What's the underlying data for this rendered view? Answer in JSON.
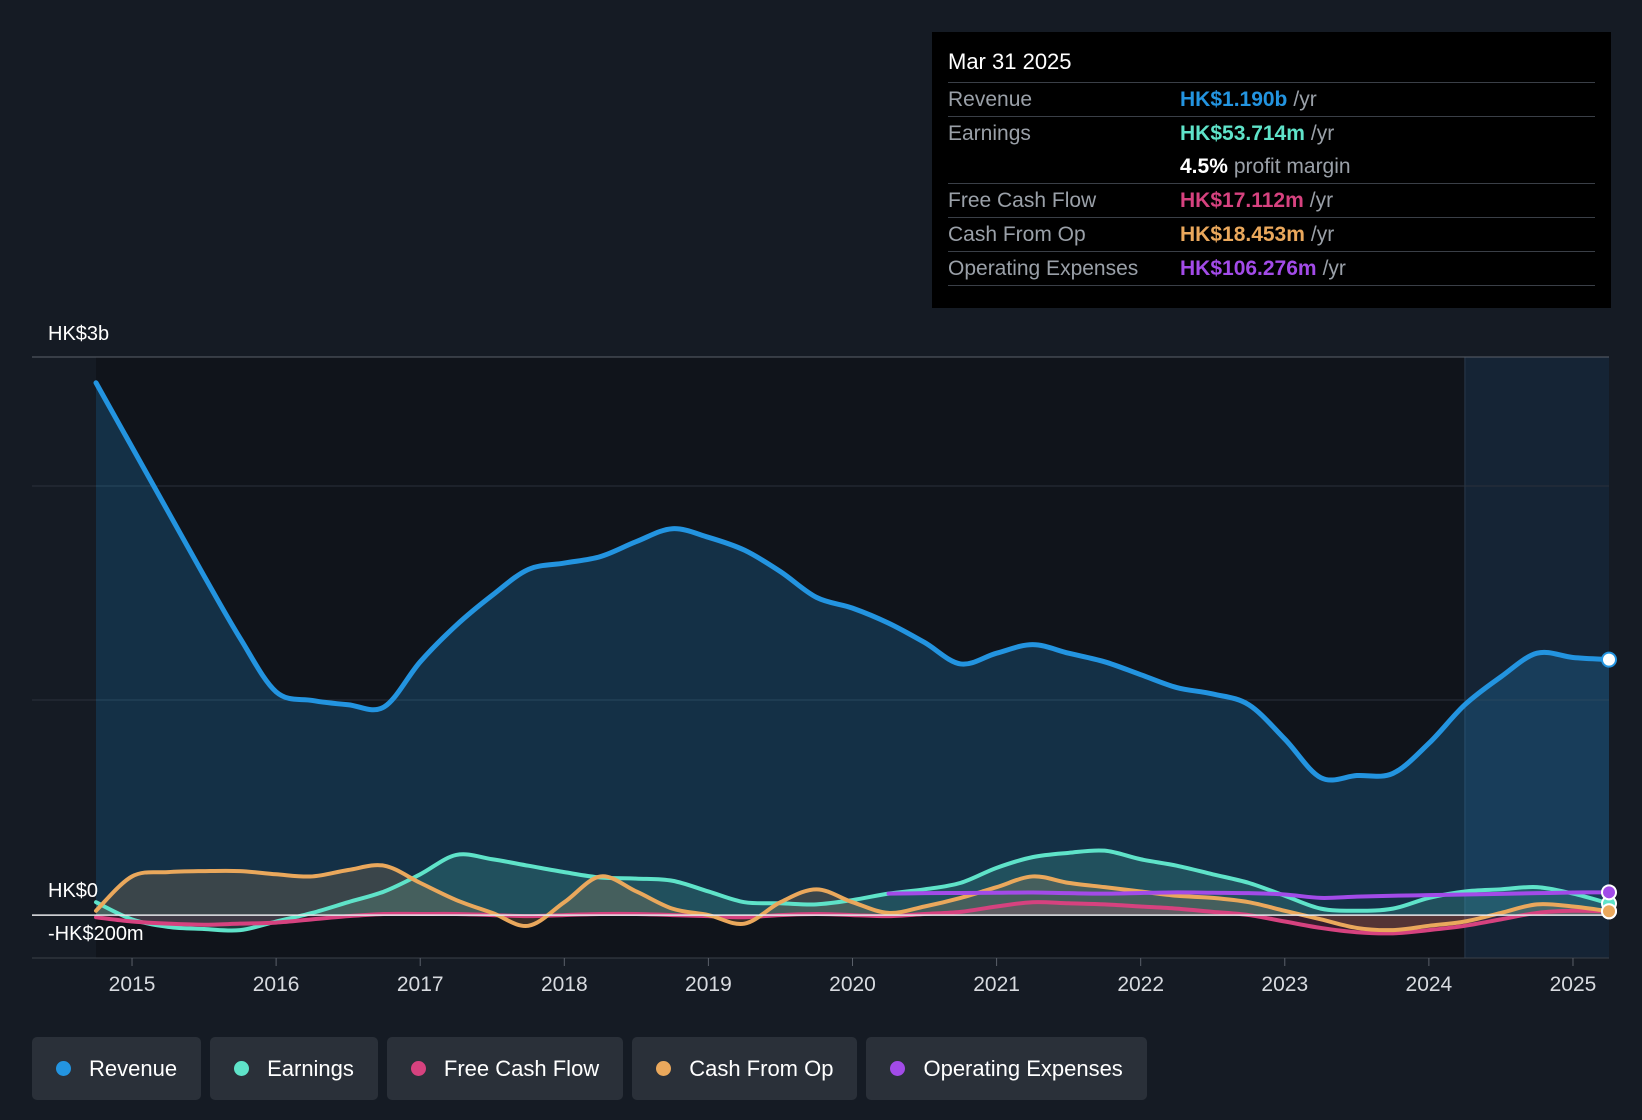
{
  "tooltip": {
    "date": "Mar 31 2025",
    "rows": [
      {
        "name": "Revenue",
        "value": "HK$1.190b",
        "unit": "/yr",
        "color": "#2394e0"
      },
      {
        "name": "Earnings",
        "value": "HK$53.714m",
        "unit": "/yr",
        "color": "#5fe3c9"
      },
      {
        "name": "",
        "value": "4.5%",
        "unit": "profit margin",
        "color": "#ffffff"
      },
      {
        "name": "Free Cash Flow",
        "value": "HK$17.112m",
        "unit": "/yr",
        "color": "#d6427f"
      },
      {
        "name": "Cash From Op",
        "value": "HK$18.453m",
        "unit": "/yr",
        "color": "#eaa85c"
      },
      {
        "name": "Operating Expenses",
        "value": "HK$106.276m",
        "unit": "/yr",
        "color": "#a24be8"
      }
    ]
  },
  "legend": [
    {
      "label": "Revenue",
      "color": "#2394e0"
    },
    {
      "label": "Earnings",
      "color": "#5fe3c9"
    },
    {
      "label": "Free Cash Flow",
      "color": "#d6427f"
    },
    {
      "label": "Cash From Op",
      "color": "#eaa85c"
    },
    {
      "label": "Operating Expenses",
      "color": "#a24be8"
    }
  ],
  "chart_data": {
    "type": "line",
    "y_axis_labels": {
      "top": "HK$3b",
      "zero": "HK$0",
      "bottom": "-HK$200m"
    },
    "ylim": [
      -200,
      2600
    ],
    "xlim": [
      2014.75,
      2025.25
    ],
    "unit": "HK$m",
    "x_ticks": [
      2015,
      2016,
      2017,
      2018,
      2019,
      2020,
      2021,
      2022,
      2023,
      2024,
      2025
    ],
    "x_tick_labels": [
      "2015",
      "2016",
      "2017",
      "2018",
      "2019",
      "2020",
      "2021",
      "2022",
      "2023",
      "2024",
      "2025"
    ],
    "forecast_start": 2024.25,
    "series": [
      {
        "name": "Revenue",
        "color": "#2394e0",
        "fill": true,
        "x": [
          2014.75,
          2015.0,
          2015.25,
          2015.5,
          2015.75,
          2016.0,
          2016.25,
          2016.5,
          2016.75,
          2017.0,
          2017.25,
          2017.5,
          2017.75,
          2018.0,
          2018.25,
          2018.5,
          2018.75,
          2019.0,
          2019.25,
          2019.5,
          2019.75,
          2020.0,
          2020.25,
          2020.5,
          2020.75,
          2021.0,
          2021.25,
          2021.5,
          2021.75,
          2022.0,
          2022.25,
          2022.5,
          2022.75,
          2023.0,
          2023.25,
          2023.5,
          2023.75,
          2024.0,
          2024.25,
          2024.5,
          2024.75,
          2025.0,
          2025.25
        ],
        "values": [
          2480,
          2180,
          1880,
          1580,
          1290,
          1040,
          1000,
          980,
          970,
          1180,
          1350,
          1490,
          1610,
          1640,
          1670,
          1740,
          1800,
          1760,
          1700,
          1600,
          1480,
          1430,
          1360,
          1270,
          1170,
          1220,
          1260,
          1220,
          1180,
          1120,
          1060,
          1030,
          980,
          820,
          640,
          650,
          660,
          800,
          980,
          1110,
          1220,
          1200,
          1190
        ]
      },
      {
        "name": "Earnings",
        "color": "#5fe3c9",
        "fill": true,
        "x": [
          2014.75,
          2015.0,
          2015.25,
          2015.5,
          2015.75,
          2016.0,
          2016.25,
          2016.5,
          2016.75,
          2017.0,
          2017.25,
          2017.5,
          2017.75,
          2018.0,
          2018.25,
          2018.5,
          2018.75,
          2019.0,
          2019.25,
          2019.5,
          2019.75,
          2020.0,
          2020.25,
          2020.5,
          2020.75,
          2021.0,
          2021.25,
          2021.5,
          2021.75,
          2022.0,
          2022.25,
          2022.5,
          2022.75,
          2023.0,
          2023.25,
          2023.5,
          2023.75,
          2024.0,
          2024.25,
          2024.5,
          2024.75,
          2025.0,
          2025.25
        ],
        "values": [
          60,
          -20,
          -55,
          -65,
          -70,
          -30,
          10,
          60,
          110,
          190,
          280,
          260,
          230,
          200,
          175,
          170,
          160,
          110,
          60,
          55,
          50,
          70,
          100,
          120,
          150,
          220,
          270,
          290,
          300,
          260,
          230,
          190,
          150,
          90,
          30,
          20,
          30,
          80,
          110,
          120,
          130,
          100,
          54
        ]
      },
      {
        "name": "Free Cash Flow",
        "color": "#d6427f",
        "fill": true,
        "x": [
          2014.75,
          2015.0,
          2015.25,
          2015.5,
          2015.75,
          2016.0,
          2016.25,
          2016.5,
          2016.75,
          2017.0,
          2017.25,
          2017.5,
          2017.75,
          2018.0,
          2018.25,
          2018.5,
          2018.75,
          2019.0,
          2019.25,
          2019.5,
          2019.75,
          2020.0,
          2020.25,
          2020.5,
          2020.75,
          2021.0,
          2021.25,
          2021.5,
          2021.75,
          2022.0,
          2022.25,
          2022.5,
          2022.75,
          2023.0,
          2023.25,
          2023.5,
          2023.75,
          2024.0,
          2024.25,
          2024.5,
          2024.75,
          2025.0,
          2025.25
        ],
        "values": [
          -10,
          -30,
          -40,
          -45,
          -40,
          -35,
          -20,
          -5,
          5,
          5,
          5,
          0,
          -5,
          0,
          5,
          5,
          0,
          -5,
          -10,
          0,
          5,
          0,
          -5,
          5,
          15,
          40,
          60,
          55,
          50,
          40,
          30,
          15,
          0,
          -30,
          -60,
          -80,
          -85,
          -70,
          -50,
          -20,
          10,
          20,
          17
        ]
      },
      {
        "name": "Cash From Op",
        "color": "#eaa85c",
        "fill": true,
        "x": [
          2014.75,
          2015.0,
          2015.25,
          2015.5,
          2015.75,
          2016.0,
          2016.25,
          2016.5,
          2016.75,
          2017.0,
          2017.25,
          2017.5,
          2017.75,
          2018.0,
          2018.25,
          2018.5,
          2018.75,
          2019.0,
          2019.25,
          2019.5,
          2019.75,
          2020.0,
          2020.25,
          2020.5,
          2020.75,
          2021.0,
          2021.25,
          2021.5,
          2021.75,
          2022.0,
          2022.25,
          2022.5,
          2022.75,
          2023.0,
          2023.25,
          2023.5,
          2023.75,
          2024.0,
          2024.25,
          2024.5,
          2024.75,
          2025.0,
          2025.25
        ],
        "values": [
          20,
          180,
          200,
          205,
          205,
          190,
          180,
          210,
          230,
          150,
          70,
          10,
          -50,
          60,
          180,
          110,
          30,
          0,
          -40,
          60,
          120,
          60,
          10,
          40,
          80,
          130,
          180,
          150,
          130,
          110,
          90,
          80,
          60,
          20,
          -20,
          -60,
          -70,
          -50,
          -30,
          10,
          50,
          40,
          18
        ]
      },
      {
        "name": "Operating Expenses",
        "color": "#a24be8",
        "fill": false,
        "x": [
          2020.25,
          2020.5,
          2020.75,
          2021.0,
          2021.25,
          2021.5,
          2021.75,
          2022.0,
          2022.25,
          2022.5,
          2022.75,
          2023.0,
          2023.25,
          2023.5,
          2023.75,
          2024.0,
          2024.25,
          2024.5,
          2024.75,
          2025.0,
          2025.25
        ],
        "values": [
          100,
          102,
          103,
          104,
          105,
          102,
          100,
          103,
          106,
          104,
          102,
          96,
          80,
          86,
          90,
          93,
          96,
          99,
          102,
          105,
          106
        ]
      }
    ]
  }
}
